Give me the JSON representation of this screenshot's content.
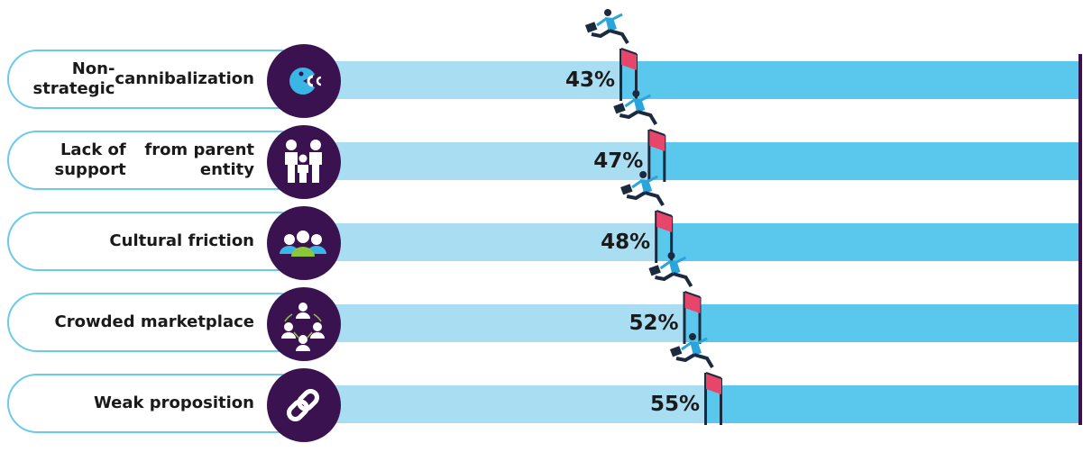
{
  "chart_data": {
    "type": "bar",
    "categories": [
      [
        "Non-strategic",
        "cannibalization"
      ],
      [
        "Lack of support",
        "from parent entity"
      ],
      [
        "Cultural friction"
      ],
      [
        "Crowded marketplace"
      ],
      [
        "Weak proposition"
      ]
    ],
    "values": [
      43,
      47,
      48,
      52,
      55
    ],
    "value_labels": [
      "43%",
      "47%",
      "48%",
      "52%",
      "55%"
    ],
    "icons": [
      "pacman-icon",
      "family-icon",
      "group-icon",
      "network-icon",
      "link-icon"
    ],
    "colors": {
      "bar_filled": "#a9ddf1",
      "bar_remaining": "#5ac8ec",
      "icon_circle": "#3a1250",
      "pill_border": "#6ccbea",
      "hurdle": "#e8456a",
      "runner_shirt": "#2aa5dc",
      "runner_pants": "#1c2a40"
    },
    "title": "",
    "xlabel": "",
    "ylabel": "",
    "ylim": [
      0,
      100
    ]
  }
}
